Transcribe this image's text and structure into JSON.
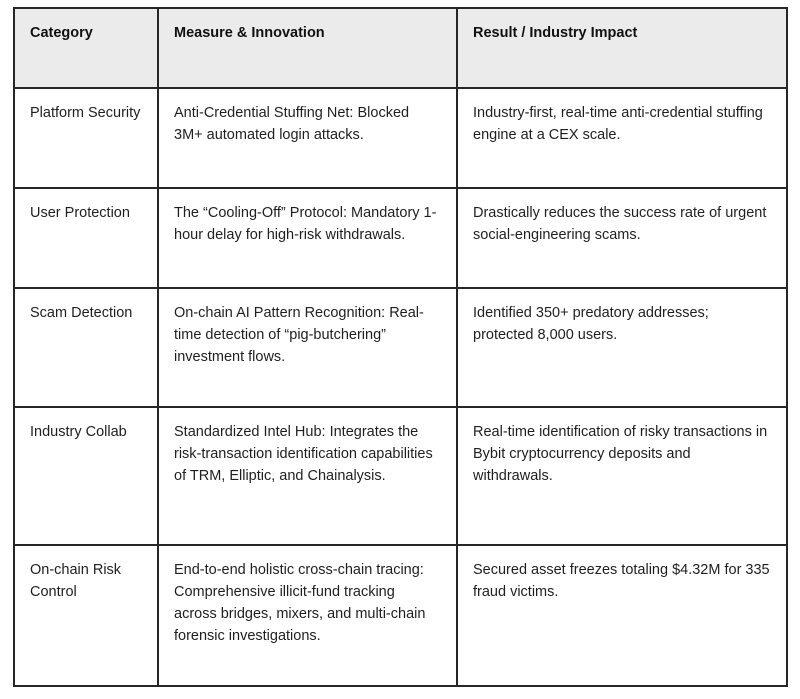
{
  "table": {
    "headers": [
      {
        "label": "Category"
      },
      {
        "label": "Measure & Innovation"
      },
      {
        "label": "Result / Industry Impact"
      }
    ],
    "rows": [
      {
        "category": "Platform Security",
        "measure": "Anti-Credential Stuffing Net: Blocked 3M+ automated login attacks.",
        "result": "Industry-first, real-time anti-credential stuffing engine at a CEX scale."
      },
      {
        "category": "User Protection",
        "measure": "The “Cooling-Off” Protocol: Mandatory 1-hour delay for high-risk withdrawals.",
        "result": "Drastically reduces the success rate of urgent social-engineering scams."
      },
      {
        "category": "Scam Detection",
        "measure": "On-chain AI Pattern Recognition: Real-time detection of “pig-butchering” investment flows.",
        "result": "Identified 350+ predatory addresses; protected 8,000 users."
      },
      {
        "category": "Industry Collab",
        "measure": "Standardized Intel Hub: Integrates the risk-transaction identification capabilities of TRM, Elliptic, and Chainalysis.",
        "result": "Real-time identification of risky transactions in Bybit cryptocurrency deposits and withdrawals."
      },
      {
        "category": "On-chain Risk Control",
        "measure": "End-to-end holistic cross-chain tracing:  Comprehensive illicit-fund tracking across bridges, mixers, and multi-chain forensic investigations.",
        "result": "Secured asset freezes totaling $4.32M for 335 fraud victims."
      }
    ]
  },
  "colors": {
    "border": "#262626",
    "header_bg": "#ebebeb",
    "text": "#1f1f1f",
    "background": "#ffffff"
  }
}
